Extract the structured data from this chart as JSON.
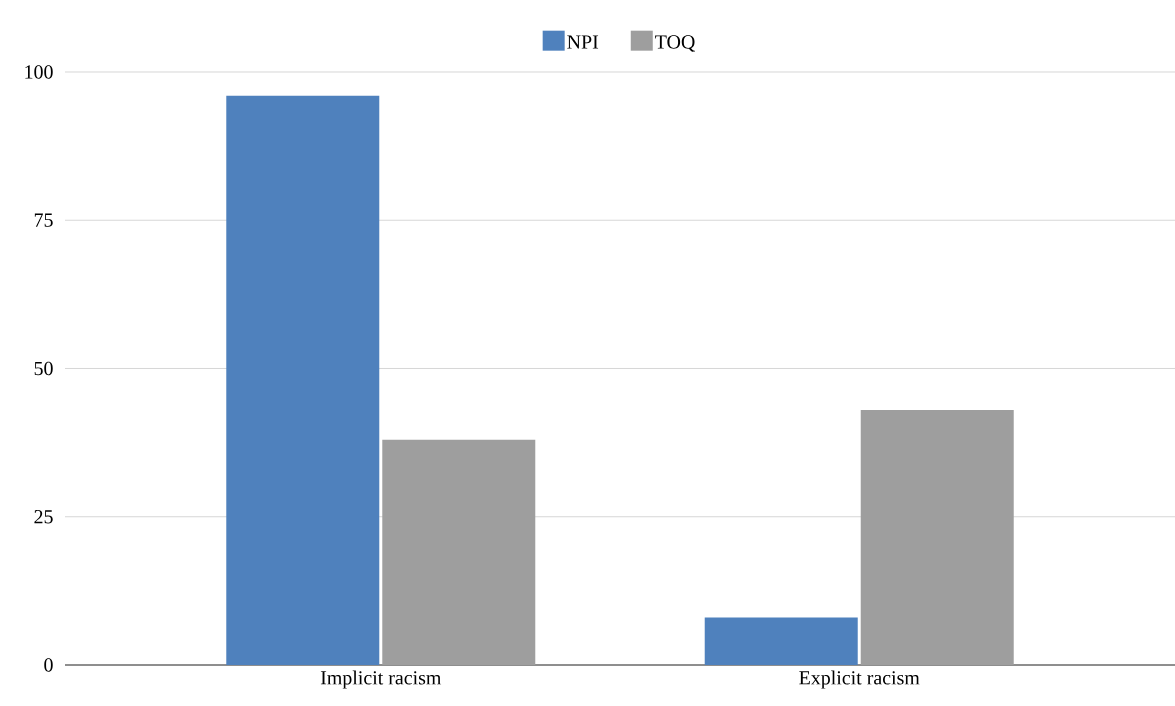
{
  "chart_data": {
    "type": "bar",
    "categories": [
      "Implicit racism",
      "Explicit racism"
    ],
    "series": [
      {
        "name": "NPI",
        "color": "#4f81bd",
        "values": [
          96,
          8
        ]
      },
      {
        "name": "TOQ",
        "color": "#9e9e9e",
        "values": [
          38,
          43
        ]
      }
    ],
    "ylim": [
      0,
      100
    ],
    "yticks": [
      0,
      25,
      50,
      75,
      100
    ],
    "grid": "y",
    "legend": "top"
  }
}
